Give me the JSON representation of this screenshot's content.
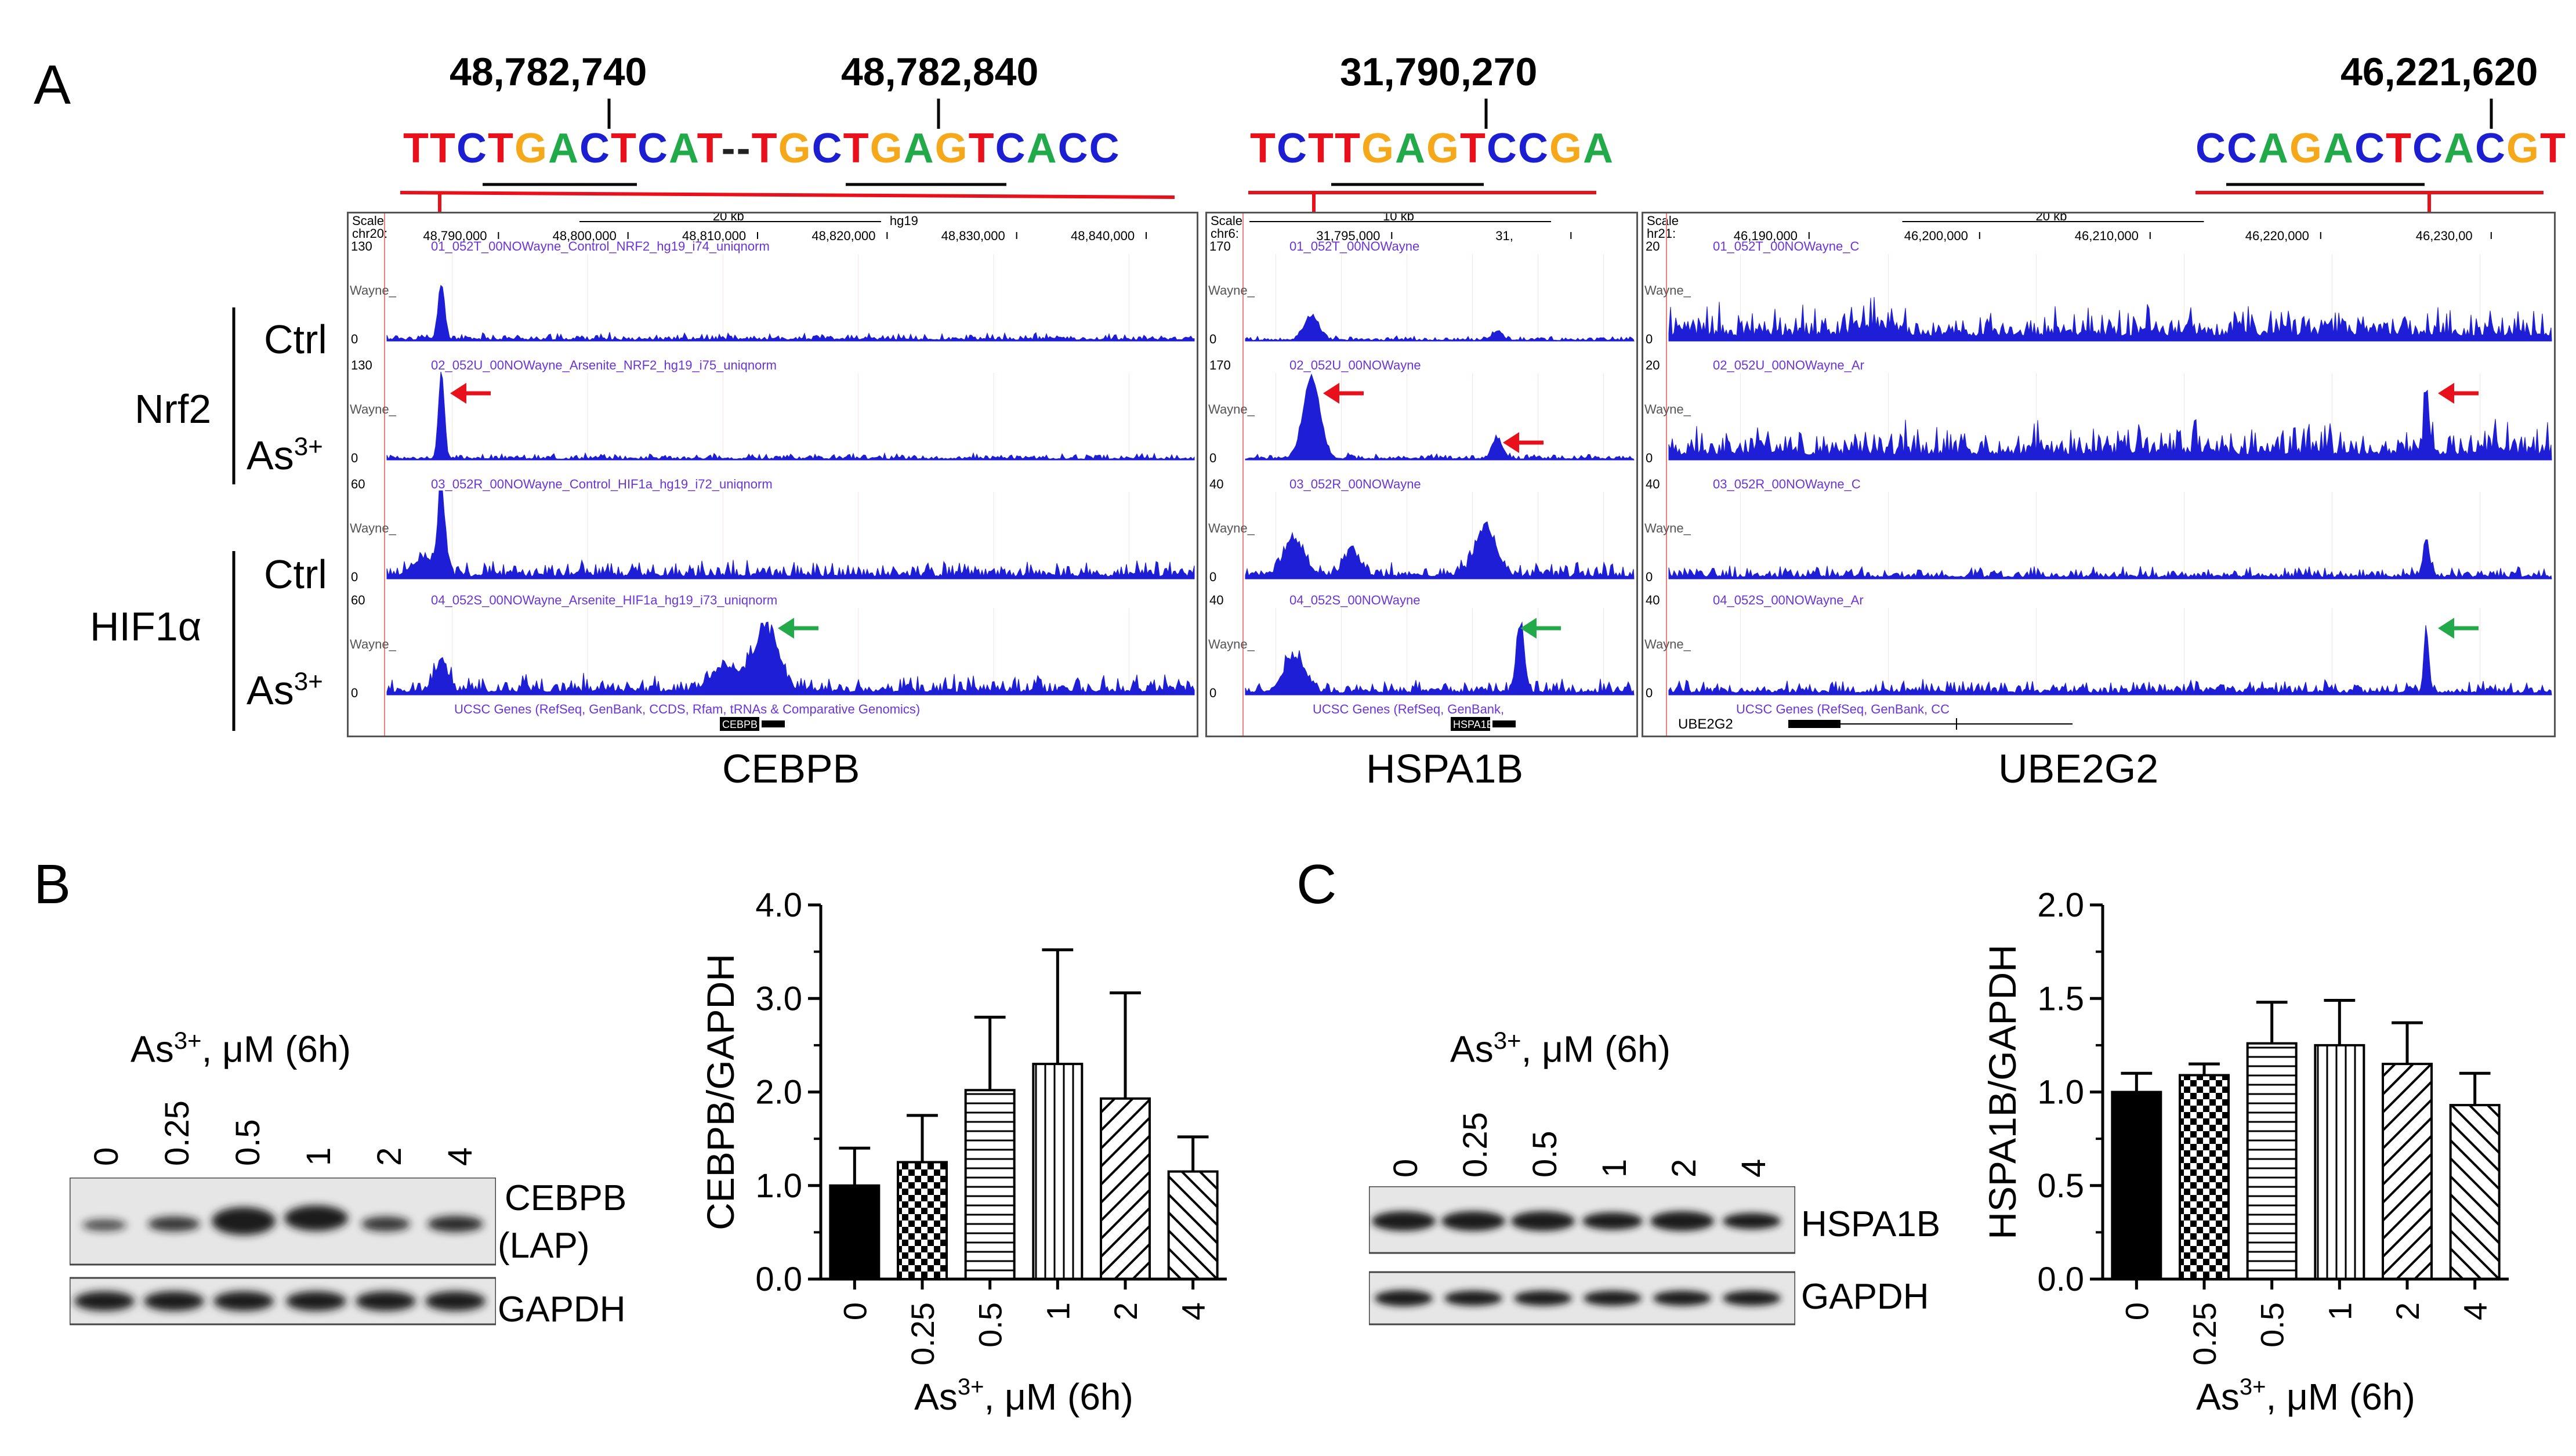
{
  "panelA": {
    "letter": "A",
    "coords": [
      "48,782,740",
      "48,782,840",
      "31,790,270",
      "46,221,620"
    ],
    "seq1": [
      {
        "t": "T",
        "c": "#e8101a"
      },
      {
        "t": "T",
        "c": "#e8101a"
      },
      {
        "t": "C",
        "c": "#1c1ed1"
      },
      {
        "t": "T",
        "c": "#e8101a"
      },
      {
        "t": "G",
        "c": "#f4a81a"
      },
      {
        "t": "A",
        "c": "#22a94a"
      },
      {
        "t": "C",
        "c": "#1c1ed1"
      },
      {
        "t": "T",
        "c": "#e8101a"
      },
      {
        "t": "C",
        "c": "#1c1ed1"
      },
      {
        "t": "A",
        "c": "#22a94a"
      },
      {
        "t": "T",
        "c": "#e8101a"
      },
      {
        "t": "--",
        "c": "#222222"
      },
      {
        "t": "T",
        "c": "#e8101a"
      },
      {
        "t": "G",
        "c": "#f4a81a"
      },
      {
        "t": "C",
        "c": "#1c1ed1"
      },
      {
        "t": "T",
        "c": "#e8101a"
      },
      {
        "t": "G",
        "c": "#f4a81a"
      },
      {
        "t": "A",
        "c": "#22a94a"
      },
      {
        "t": "G",
        "c": "#f4a81a"
      },
      {
        "t": "T",
        "c": "#e8101a"
      },
      {
        "t": "C",
        "c": "#1c1ed1"
      },
      {
        "t": "A",
        "c": "#22a94a"
      },
      {
        "t": "C",
        "c": "#1c1ed1"
      },
      {
        "t": "C",
        "c": "#1c1ed1"
      }
    ],
    "seq2": [
      {
        "t": "T",
        "c": "#e8101a"
      },
      {
        "t": "C",
        "c": "#1c1ed1"
      },
      {
        "t": "T",
        "c": "#e8101a"
      },
      {
        "t": "T",
        "c": "#e8101a"
      },
      {
        "t": "G",
        "c": "#f4a81a"
      },
      {
        "t": "A",
        "c": "#22a94a"
      },
      {
        "t": "G",
        "c": "#f4a81a"
      },
      {
        "t": "T",
        "c": "#e8101a"
      },
      {
        "t": "C",
        "c": "#1c1ed1"
      },
      {
        "t": "C",
        "c": "#1c1ed1"
      },
      {
        "t": "G",
        "c": "#f4a81a"
      },
      {
        "t": "A",
        "c": "#22a94a"
      }
    ],
    "seq3": [
      {
        "t": "C",
        "c": "#1c1ed1"
      },
      {
        "t": "C",
        "c": "#1c1ed1"
      },
      {
        "t": "A",
        "c": "#22a94a"
      },
      {
        "t": "G",
        "c": "#f4a81a"
      },
      {
        "t": "A",
        "c": "#22a94a"
      },
      {
        "t": "C",
        "c": "#1c1ed1"
      },
      {
        "t": "T",
        "c": "#e8101a"
      },
      {
        "t": "C",
        "c": "#1c1ed1"
      },
      {
        "t": "A",
        "c": "#22a94a"
      },
      {
        "t": "C",
        "c": "#1c1ed1"
      },
      {
        "t": "G",
        "c": "#f4a81a"
      },
      {
        "t": "T",
        "c": "#e8101a"
      }
    ],
    "row_labels": {
      "nrf2": "Nrf2",
      "hif": "HIF1α",
      "ctrl": "Ctrl",
      "as_base": "As",
      "as_sup": "3+"
    },
    "genes": [
      "CEBPB",
      "HSPA1B",
      "UBE2G2"
    ],
    "browser1": {
      "scale": "Scale",
      "chr": "chr20:",
      "scale_val": "20 kb",
      "assembly": "hg19",
      "ticks": [
        "48,790,000",
        "48,800,000",
        "48,810,000",
        "48,820,000",
        "48,830,000",
        "48,840,000"
      ],
      "tracks": [
        "01_052T_00NOWayne_Control_NRF2_hg19_i74_uniqnorm",
        "02_052U_00NOWayne_Arsenite_NRF2_hg19_i75_uniqnorm",
        "03_052R_00NOWayne_Control_HIF1a_hg19_i72_uniqnorm",
        "04_052S_00NOWayne_Arsenite_HIF1a_hg19_i73_uniqnorm"
      ],
      "maxes": [
        "130",
        "130",
        "60",
        "60"
      ],
      "genes_track": "UCSC Genes (RefSeq, GenBank, CCDS, Rfam, tRNAs & Comparative Genomics)",
      "gene_box": "CEBPB"
    },
    "browser2": {
      "scale": "Scale",
      "chr": "chr6:",
      "scale_val": "10 kb",
      "ticks": [
        "31,795,000",
        "31,"
      ],
      "tracks": [
        "01_052T_00NOWayne",
        "02_052U_00NOWayne",
        "03_052R_00NOWayne",
        "04_052S_00NOWayne"
      ],
      "maxes": [
        "170",
        "170",
        "40",
        "40"
      ],
      "genes_track": "UCSC Genes (RefSeq, GenBank,",
      "gene_box": "HSPA1B"
    },
    "browser3": {
      "scale": "Scale",
      "chr": "hr21:",
      "scale_val": "20 kb",
      "ticks": [
        "46,190,000",
        "46,200,000",
        "46,210,000",
        "46,220,000",
        "46,230,00"
      ],
      "tracks": [
        "01_052T_00NOWayne_C",
        "02_052U_00NOWayne_Ar",
        "03_052R_00NOWayne_C",
        "04_052S_00NOWayne_Ar"
      ],
      "maxes": [
        "20",
        "20",
        "40",
        "40"
      ],
      "genes_track": "UCSC Genes (RefSeq, GenBank, CC",
      "gene_name": "UBE2G2"
    },
    "track_prefix": "Wayne_",
    "zero": "0"
  },
  "panelB": {
    "letter": "B",
    "treatment": {
      "base": "As",
      "sup": "3+",
      "rest": ", μM (6h)"
    },
    "lanes": [
      "0",
      "0.25",
      "0.5",
      "1",
      "2",
      "4"
    ],
    "band_labels": {
      "protein": "CEBPB",
      "isoform": "(LAP)",
      "loading": "GAPDH"
    }
  },
  "panelC": {
    "letter": "C",
    "treatment": {
      "base": "As",
      "sup": "3+",
      "rest": ", μM (6h)"
    },
    "lanes": [
      "0",
      "0.25",
      "0.5",
      "1",
      "2",
      "4"
    ],
    "band_labels": {
      "protein": "HSPA1B",
      "loading": "GAPDH"
    }
  },
  "chart_data": [
    {
      "type": "bar",
      "title": "",
      "ylabel": "CEBPB/GAPDH",
      "xlabel": "As3+, μM (6h)",
      "xlabel_parts": {
        "base": "As",
        "sup": "3+",
        "rest": ", μM (6h)"
      },
      "categories": [
        "0",
        "0.25",
        "0.5",
        "1",
        "2",
        "4"
      ],
      "values": [
        1.0,
        1.25,
        2.02,
        2.3,
        1.93,
        1.15
      ],
      "errors": [
        0.4,
        0.5,
        0.78,
        1.22,
        1.13,
        0.37
      ],
      "ylim": [
        0,
        4
      ],
      "yticks": [
        "0.0",
        "1.0",
        "2.0",
        "3.0",
        "4.0"
      ],
      "patterns": [
        "solid",
        "checker",
        "horizontal",
        "vertical",
        "diag-right",
        "diag-left"
      ]
    },
    {
      "type": "bar",
      "title": "",
      "ylabel": "HSPA1B/GAPDH",
      "xlabel": "As3+, μM (6h)",
      "xlabel_parts": {
        "base": "As",
        "sup": "3+",
        "rest": ", μM (6h)"
      },
      "categories": [
        "0",
        "0.25",
        "0.5",
        "1",
        "2",
        "4"
      ],
      "values": [
        1.0,
        1.09,
        1.26,
        1.25,
        1.15,
        0.93
      ],
      "errors": [
        0.1,
        0.06,
        0.22,
        0.24,
        0.22,
        0.17
      ],
      "ylim": [
        0,
        2
      ],
      "yticks": [
        "0.0",
        "0.5",
        "1.0",
        "1.5",
        "2.0"
      ],
      "patterns": [
        "solid",
        "checker",
        "horizontal",
        "vertical",
        "diag-right",
        "diag-left"
      ]
    }
  ]
}
